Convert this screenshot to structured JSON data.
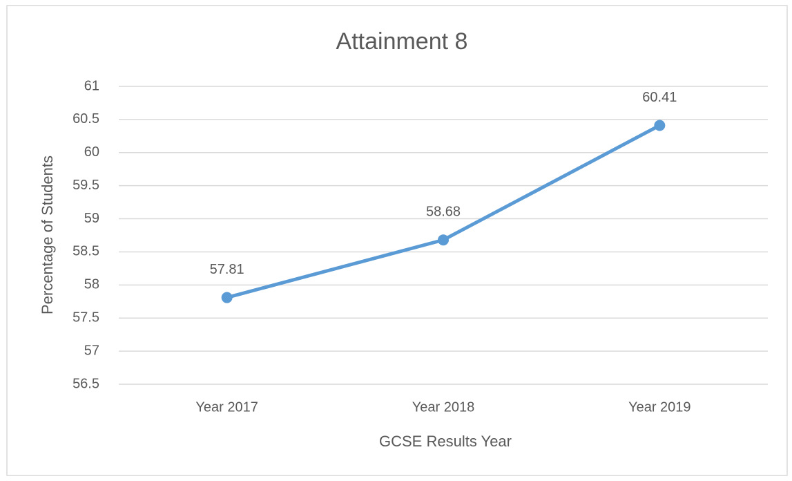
{
  "chart_data": {
    "type": "line",
    "title": "Attainment 8",
    "x_label": "GCSE Results Year",
    "y_label": "Percentage of Students",
    "categories": [
      "Year 2017",
      "Year 2018",
      "Year 2019"
    ],
    "series": [
      {
        "name": "Attainment 8",
        "color": "#5b9bd5",
        "values": [
          57.81,
          58.68,
          60.41
        ]
      }
    ],
    "ylim": [
      56.5,
      61
    ],
    "yticks": [
      56.5,
      57,
      57.5,
      58,
      58.5,
      59,
      59.5,
      60,
      60.5,
      61
    ],
    "grid": true
  }
}
